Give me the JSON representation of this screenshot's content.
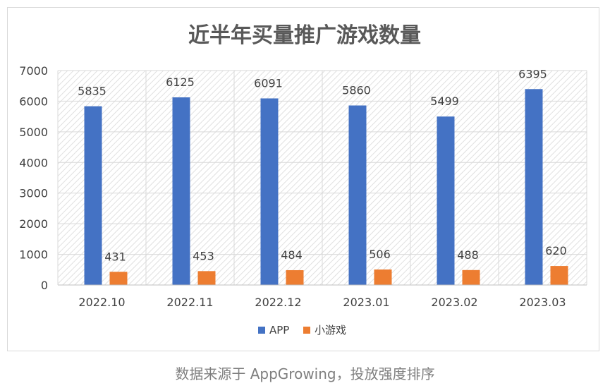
{
  "chart_data": {
    "type": "bar",
    "title": "近半年买量推广游戏数量",
    "categories": [
      "2022.10",
      "2022.11",
      "2022.12",
      "2023.01",
      "2023.02",
      "2023.03"
    ],
    "series": [
      {
        "name": "APP",
        "color": "#4472C4",
        "values": [
          5835,
          6125,
          6091,
          5860,
          5499,
          6395
        ]
      },
      {
        "name": "小游戏",
        "color": "#ED7D31",
        "values": [
          431,
          453,
          484,
          506,
          488,
          620
        ]
      }
    ],
    "ylim": [
      0,
      7000
    ],
    "yticks": [
      0,
      1000,
      2000,
      3000,
      4000,
      5000,
      6000,
      7000
    ],
    "grid": true,
    "legend_position": "bottom",
    "data_labels": true
  },
  "caption": "数据来源于 AppGrowing，投放强度排序"
}
